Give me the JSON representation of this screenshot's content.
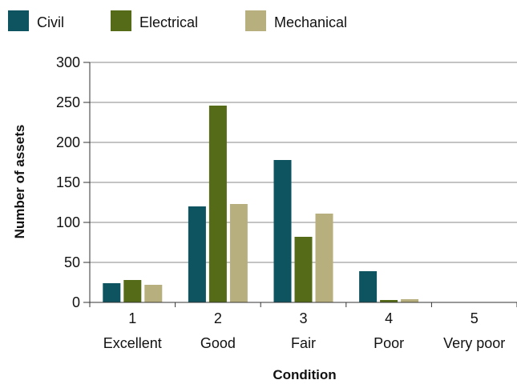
{
  "chart_data": {
    "type": "bar",
    "categories": [
      "1",
      "2",
      "3",
      "4",
      "5"
    ],
    "category_sublabels": [
      "Excellent",
      "Good",
      "Fair",
      "Poor",
      "Very poor"
    ],
    "series": [
      {
        "name": "Civil",
        "color": "#0e5360",
        "values": [
          24,
          120,
          178,
          39,
          0
        ]
      },
      {
        "name": "Electrical",
        "color": "#566b17",
        "values": [
          28,
          246,
          82,
          3,
          0
        ]
      },
      {
        "name": "Mechanical",
        "color": "#b7b07e",
        "values": [
          22,
          123,
          111,
          4,
          0
        ]
      }
    ],
    "xlabel": "Condition",
    "ylabel": "Number of assets",
    "ylim": [
      0,
      300
    ],
    "yticks": [
      0,
      50,
      100,
      150,
      200,
      250,
      300
    ],
    "grid": true,
    "legend": "top"
  }
}
